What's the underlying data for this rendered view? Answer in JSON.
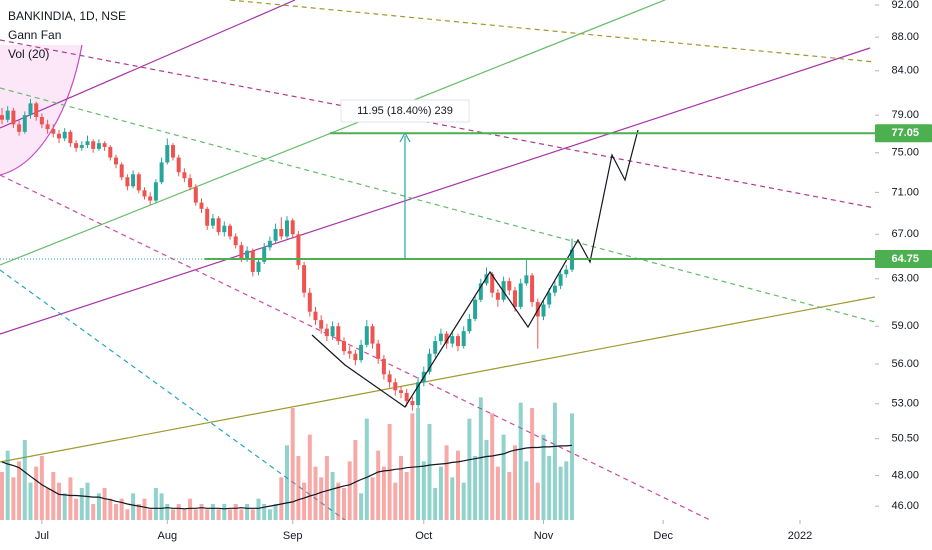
{
  "chart_data": {
    "type": "candlestick",
    "title": "BANKINDIA, 1D, NSE",
    "indicators": [
      "Gann Fan",
      "Vol (20)"
    ],
    "annotation": "11.95 (18.40%) 239",
    "log_scale": true,
    "ylim": [
      45.13,
      92.64
    ],
    "yticks": [
      {
        "value": 92,
        "label": "92.00"
      },
      {
        "value": 88,
        "label": "88.00"
      },
      {
        "value": 84,
        "label": "84.00"
      },
      {
        "value": 79,
        "label": "79.00"
      },
      {
        "value": 75,
        "label": "75.00"
      },
      {
        "value": 71,
        "label": "71.00"
      },
      {
        "value": 67,
        "label": "67.00"
      },
      {
        "value": 63,
        "label": "63.00"
      },
      {
        "value": 59,
        "label": "59.00"
      },
      {
        "value": 56,
        "label": "56.00"
      },
      {
        "value": 53,
        "label": "53.00"
      },
      {
        "value": 50.5,
        "label": "50.50"
      },
      {
        "value": 48,
        "label": "48.00"
      },
      {
        "value": 46,
        "label": "46.00"
      }
    ],
    "xlim": [
      -0.35,
      153.16
    ],
    "xticks": [
      {
        "value": 7,
        "label": "Jul"
      },
      {
        "value": 29,
        "label": "Aug"
      },
      {
        "value": 51,
        "label": "Sep"
      },
      {
        "value": 74,
        "label": "Oct"
      },
      {
        "value": 95,
        "label": "Nov"
      },
      {
        "value": 116,
        "label": "Dec"
      },
      {
        "value": 140,
        "label": "2022"
      }
    ],
    "up_color": "#26a69a",
    "down_color": "#ef5350",
    "price_lines": [
      {
        "value": 77.05,
        "color": "#4caf50"
      },
      {
        "value": 64.75,
        "color": "#4caf50"
      }
    ],
    "candles": [
      [
        79,
        79.8,
        78,
        78.5
      ],
      [
        78.5,
        80,
        78.2,
        79.5
      ],
      [
        79.5,
        79.8,
        77.6,
        78
      ],
      [
        78,
        78.4,
        76.8,
        77.2
      ],
      [
        77.2,
        79.4,
        77,
        79
      ],
      [
        79,
        80.8,
        78.6,
        80.3
      ],
      [
        80.3,
        80.5,
        78.4,
        78.8
      ],
      [
        78.8,
        79.2,
        77.6,
        78
      ],
      [
        78,
        78.5,
        77,
        77.5
      ],
      [
        77.5,
        78,
        76.6,
        77
      ],
      [
        77,
        77.4,
        76,
        76.5
      ],
      [
        76.5,
        77.6,
        76.2,
        77.2
      ],
      [
        77.2,
        77.4,
        75.6,
        76
      ],
      [
        76,
        76.3,
        75.1,
        75.5
      ],
      [
        75.5,
        76.2,
        75.2,
        75.8
      ],
      [
        75.8,
        76.8,
        75.5,
        76.2
      ],
      [
        76.2,
        76.4,
        75,
        75.4
      ],
      [
        75.4,
        76.4,
        75.2,
        76
      ],
      [
        76,
        76.2,
        75.2,
        75.6
      ],
      [
        75.6,
        75.8,
        74.2,
        74.5
      ],
      [
        74.5,
        74.8,
        73.4,
        73.8
      ],
      [
        73.8,
        74,
        72.2,
        72.5
      ],
      [
        72.5,
        72.8,
        71.2,
        71.6
      ],
      [
        71.6,
        73.2,
        71.4,
        72.8
      ],
      [
        72.8,
        73,
        70.9,
        71.2
      ],
      [
        71.2,
        71.5,
        70.3,
        70.6
      ],
      [
        70.6,
        71,
        69.8,
        70.2
      ],
      [
        70.2,
        72.3,
        70,
        72
      ],
      [
        72,
        74.5,
        71.8,
        74
      ],
      [
        74,
        76.5,
        73.8,
        75.8
      ],
      [
        75.8,
        76,
        74.2,
        74.5
      ],
      [
        74.5,
        74.8,
        72.6,
        73
      ],
      [
        73,
        73.4,
        72,
        72.4
      ],
      [
        72.4,
        72.8,
        71.2,
        71.5
      ],
      [
        71.5,
        71.8,
        69.7,
        70
      ],
      [
        70,
        70.4,
        69,
        69.4
      ],
      [
        69.4,
        69.6,
        67.4,
        67.8
      ],
      [
        67.8,
        68.9,
        67.5,
        68.5
      ],
      [
        68.5,
        68.7,
        66.9,
        67.2
      ],
      [
        67.2,
        68.2,
        66.8,
        67.8
      ],
      [
        67.8,
        68,
        66.5,
        66.8
      ],
      [
        66.8,
        67.1,
        65.7,
        66
      ],
      [
        66,
        66.3,
        64.5,
        64.8
      ],
      [
        64.8,
        65.9,
        64.5,
        65.5
      ],
      [
        65.5,
        65.7,
        63.2,
        63.6
      ],
      [
        63.6,
        64.8,
        63.3,
        64.5
      ],
      [
        64.5,
        66.2,
        64.3,
        65.8
      ],
      [
        65.8,
        66.8,
        65.5,
        66.4
      ],
      [
        66.4,
        68,
        66.2,
        67.5
      ],
      [
        67.5,
        68.6,
        66.5,
        66.8
      ],
      [
        66.8,
        68.7,
        66.6,
        68.3
      ],
      [
        68.3,
        68.5,
        66.6,
        67
      ],
      [
        67,
        67.3,
        63.8,
        64.2
      ],
      [
        64.2,
        64.5,
        61.4,
        61.8
      ],
      [
        61.8,
        62.2,
        59.8,
        60.2
      ],
      [
        60.2,
        60.6,
        59.1,
        59.5
      ],
      [
        59.5,
        59.9,
        58.4,
        58.8
      ],
      [
        58.8,
        59.2,
        57.8,
        58.2
      ],
      [
        58.2,
        59.4,
        57.9,
        59
      ],
      [
        59,
        59.3,
        57.5,
        57.8
      ],
      [
        57.8,
        58.1,
        56.7,
        57
      ],
      [
        57,
        57.4,
        56.4,
        56.8
      ],
      [
        56.8,
        57.1,
        55.9,
        56.3
      ],
      [
        56.3,
        57.9,
        56.1,
        57.5
      ],
      [
        57.5,
        59.5,
        57.3,
        59
      ],
      [
        59,
        59.2,
        57.2,
        57.6
      ],
      [
        57.6,
        57.9,
        56,
        56.4
      ],
      [
        56.4,
        56.7,
        54.8,
        55.2
      ],
      [
        55.2,
        55.5,
        54.2,
        54.6
      ],
      [
        54.6,
        54.9,
        53.6,
        54
      ],
      [
        54,
        54.3,
        53.4,
        53.8
      ],
      [
        53.8,
        54.1,
        52.8,
        53.2
      ],
      [
        53.2,
        53.5,
        52.5,
        52.9
      ],
      [
        52.9,
        55,
        52.7,
        54.6
      ],
      [
        54.6,
        55.8,
        54.3,
        55.4
      ],
      [
        55.4,
        57.2,
        55.2,
        56.8
      ],
      [
        56.8,
        58.2,
        56.5,
        57.8
      ],
      [
        57.8,
        58.8,
        57.5,
        58.4
      ],
      [
        58.4,
        58.6,
        57.2,
        57.6
      ],
      [
        57.6,
        58.6,
        57.3,
        58.2
      ],
      [
        58.2,
        58.4,
        57,
        57.4
      ],
      [
        57.4,
        59,
        57.2,
        58.6
      ],
      [
        58.6,
        60,
        58.4,
        59.6
      ],
      [
        59.6,
        61.6,
        59.4,
        61.2
      ],
      [
        61.2,
        63,
        61,
        62.6
      ],
      [
        62.6,
        64,
        62.4,
        63.4
      ],
      [
        63.4,
        63.6,
        61.4,
        61.8
      ],
      [
        61.8,
        62.1,
        60.6,
        61.2
      ],
      [
        61.2,
        63.2,
        61,
        62.8
      ],
      [
        62.8,
        63.1,
        61.6,
        62
      ],
      [
        62,
        62.3,
        60.2,
        60.6
      ],
      [
        60.6,
        63,
        60.4,
        62.6
      ],
      [
        62.6,
        64.8,
        62.4,
        63.3
      ],
      [
        63.3,
        63.5,
        60.6,
        61
      ],
      [
        61,
        61.3,
        57.2,
        59.8
      ],
      [
        59.8,
        61.2,
        59.5,
        60.8
      ],
      [
        60.8,
        62.2,
        60.5,
        61.8
      ],
      [
        61.8,
        62.8,
        61.5,
        62.4
      ],
      [
        62.4,
        63.8,
        62.1,
        63.4
      ],
      [
        63.4,
        64.2,
        63.1,
        63.8
      ],
      [
        63.8,
        66.6,
        63.6,
        65.6
      ]
    ],
    "vlim": [
      0,
      30
    ],
    "volume": [
      9,
      13,
      8,
      11,
      15,
      7,
      10,
      12,
      6,
      9,
      7,
      5,
      8,
      4,
      6,
      7,
      3,
      5,
      6,
      4,
      3,
      4,
      2,
      5,
      3,
      4,
      2,
      6,
      5,
      3,
      2,
      3,
      2,
      4,
      2,
      3,
      2,
      3,
      2,
      3,
      2,
      3,
      2,
      3,
      2,
      4,
      3,
      2,
      3,
      8,
      14,
      21,
      12,
      7,
      16,
      10,
      8,
      12,
      9,
      7,
      6,
      11,
      15,
      5,
      19,
      8,
      13,
      10,
      18,
      7,
      12,
      9,
      20,
      21,
      11,
      18,
      6,
      10,
      14,
      8,
      13,
      7,
      19,
      12,
      23,
      15,
      20,
      10,
      16,
      9,
      14,
      22,
      11,
      21,
      7,
      16,
      12,
      22,
      10,
      11,
      20
    ],
    "volume_ma": [
      10.9,
      10.5,
      10.2,
      9.8,
      9.0,
      8.2,
      7.4,
      6.6,
      6.0,
      5.4,
      4.8,
      4.7,
      4.6,
      4.6,
      4.5,
      4.4,
      4.3,
      4.3,
      4.0,
      3.8,
      3.5,
      3.3,
      3.0,
      2.8,
      2.6,
      2.4,
      2.2,
      2.2,
      2.2,
      2.3,
      2.2,
      2.2,
      2.1,
      2.2,
      2.2,
      2.3,
      2.2,
      2.2,
      2.2,
      2.1,
      2.2,
      2.2,
      2.3,
      2.2,
      2.2,
      2.2,
      2.4,
      2.6,
      2.8,
      3.0,
      3.2,
      3.4,
      3.8,
      4.1,
      4.5,
      4.8,
      5.2,
      5.5,
      5.8,
      6.1,
      6.4,
      6.6,
      7.1,
      7.6,
      8.0,
      8.5,
      9.0,
      9.2,
      9.3,
      9.5,
      9.6,
      9.8,
      9.9,
      10.0,
      10.1,
      10.3,
      10.4,
      10.5,
      10.6,
      10.8,
      10.9,
      11.1,
      11.3,
      11.5,
      11.7,
      11.9,
      12.0,
      12.2,
      12.4,
      12.8,
      13.1,
      13.3,
      13.5,
      13.6,
      13.6,
      13.7,
      13.7,
      13.8,
      13.9,
      13.9,
      14.0
    ]
  }
}
